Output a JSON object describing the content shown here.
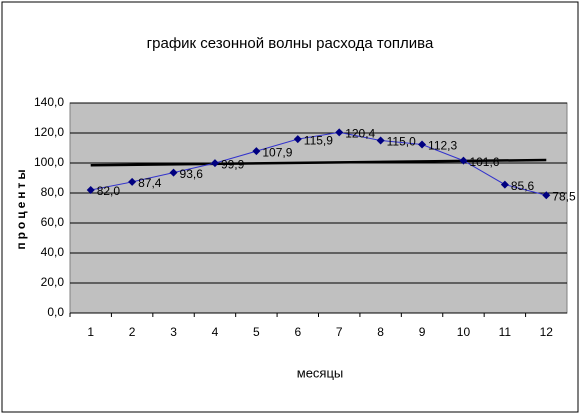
{
  "chart_data": {
    "type": "line",
    "title": "график сезонной волны расхода топлива",
    "x_label": "месяцы",
    "y_label": "проценты",
    "categories": [
      "1",
      "2",
      "3",
      "4",
      "5",
      "6",
      "7",
      "8",
      "9",
      "10",
      "11",
      "12"
    ],
    "series": [
      {
        "color": "#000080",
        "values": [
          82.0,
          87.4,
          93.6,
          99.9,
          107.9,
          115.9,
          120.4,
          115.0,
          112.3,
          101.6,
          85.6,
          78.5
        ],
        "value_labels": [
          "82,0",
          "87,4",
          "93,6",
          "99,9",
          "107,9",
          "115,9",
          "120,4",
          "115,0",
          "112,3",
          "101,6",
          "85,6",
          "78,5"
        ]
      }
    ],
    "trendline": {
      "color": "#000000",
      "values": [
        98.5,
        102.0
      ]
    },
    "ylim": [
      0,
      140
    ],
    "yticks": [
      {
        "value": 0,
        "label": "0,0"
      },
      {
        "value": 20,
        "label": "20,0"
      },
      {
        "value": 40,
        "label": "40,0"
      },
      {
        "value": 60,
        "label": "60,0"
      },
      {
        "value": 80,
        "label": "80,0"
      },
      {
        "value": 100,
        "label": "100,0"
      },
      {
        "value": 120,
        "label": "120,0"
      },
      {
        "value": 140,
        "label": "140,0"
      }
    ],
    "grid": true
  }
}
